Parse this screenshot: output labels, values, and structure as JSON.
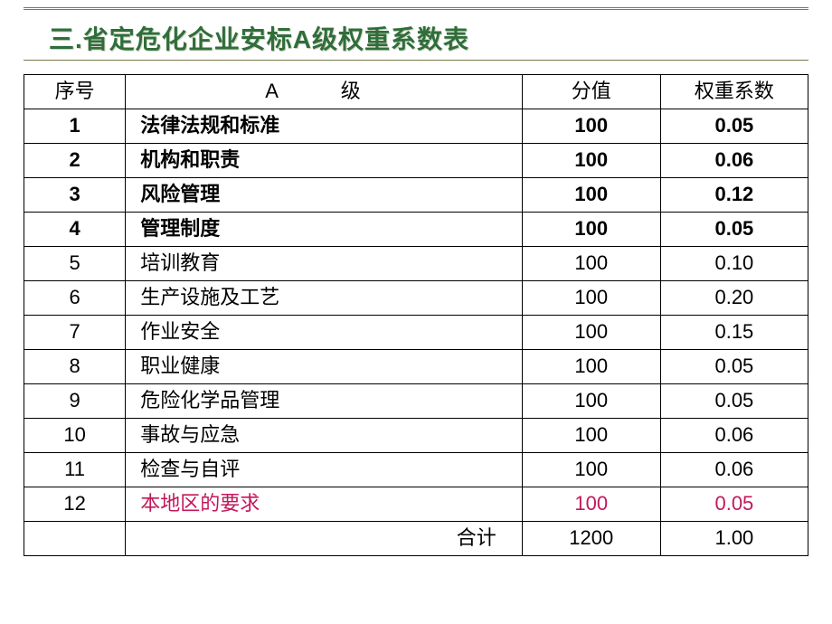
{
  "title": "三.省定危化企业安标A级权重系数表",
  "columns": [
    "序号",
    "A　级",
    "分值",
    "权重系数"
  ],
  "rows": [
    {
      "idx": "1",
      "name": "法律法规和标准",
      "score": "100",
      "wt": "0.05",
      "bold": true,
      "highlight": false
    },
    {
      "idx": "2",
      "name": "机构和职责",
      "score": "100",
      "wt": "0.06",
      "bold": true,
      "highlight": false
    },
    {
      "idx": "3",
      "name": "风险管理",
      "score": "100",
      "wt": "0.12",
      "bold": true,
      "highlight": false
    },
    {
      "idx": "4",
      "name": "管理制度",
      "score": "100",
      "wt": "0.05",
      "bold": true,
      "highlight": false
    },
    {
      "idx": "5",
      "name": "培训教育",
      "score": "100",
      "wt": "0.10",
      "bold": false,
      "highlight": false
    },
    {
      "idx": "6",
      "name": "生产设施及工艺",
      "score": "100",
      "wt": "0.20",
      "bold": false,
      "highlight": false
    },
    {
      "idx": "7",
      "name": "作业安全",
      "score": "100",
      "wt": "0.15",
      "bold": false,
      "highlight": false
    },
    {
      "idx": "8",
      "name": "职业健康",
      "score": "100",
      "wt": "0.05",
      "bold": false,
      "highlight": false
    },
    {
      "idx": "9",
      "name": "危险化学品管理",
      "score": "100",
      "wt": "0.05",
      "bold": false,
      "highlight": false
    },
    {
      "idx": "10",
      "name": "事故与应急",
      "score": "100",
      "wt": "0.06",
      "bold": false,
      "highlight": false
    },
    {
      "idx": "11",
      "name": "检查与自评",
      "score": "100",
      "wt": "0.06",
      "bold": false,
      "highlight": false
    },
    {
      "idx": "12",
      "name": "本地区的要求",
      "score": "100",
      "wt": "0.05",
      "bold": false,
      "highlight": true
    }
  ],
  "total": {
    "label": "合计",
    "score": "1200",
    "wt": "1.00"
  },
  "colors": {
    "title": "#2f6e3a",
    "rule": "#7a7a4a",
    "highlight_text": "#c2185b",
    "border": "#000000",
    "background": "#ffffff"
  }
}
